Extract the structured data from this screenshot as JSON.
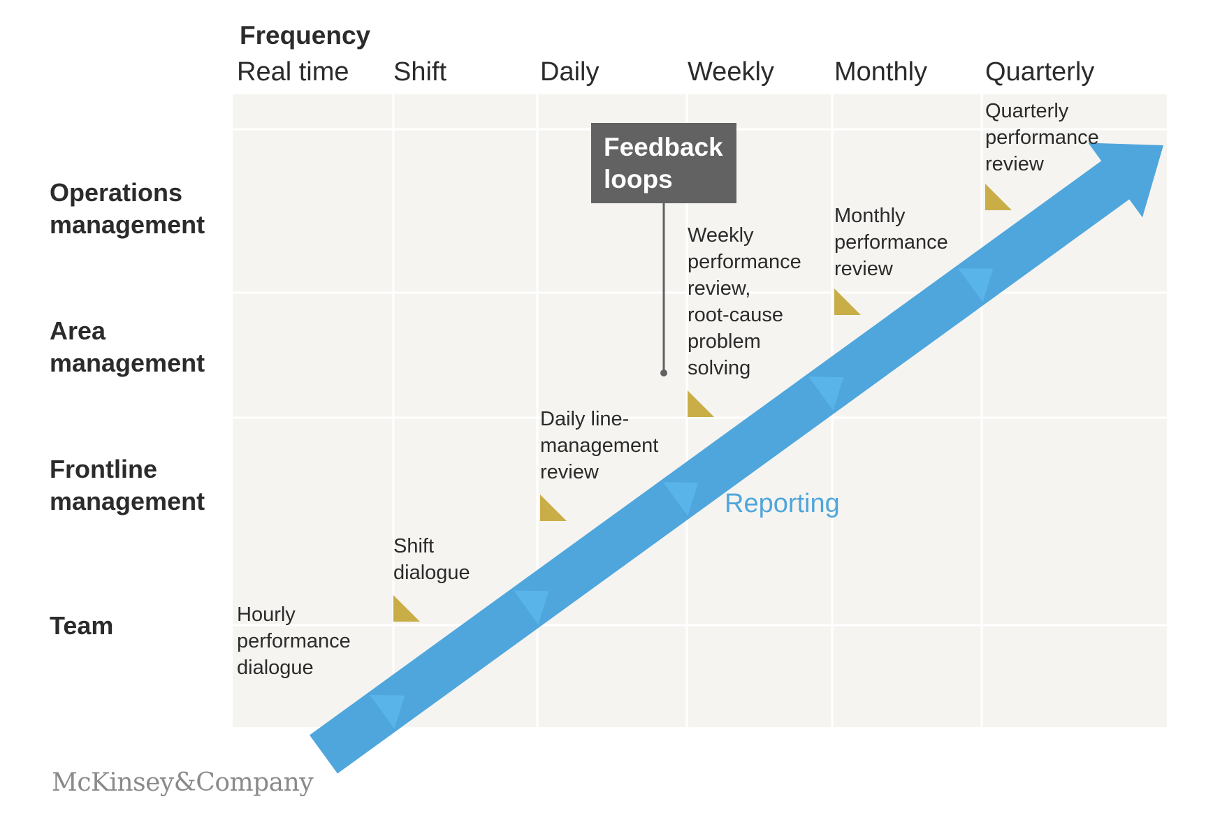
{
  "header": {
    "title": "Frequency",
    "columns": [
      "Real time",
      "Shift",
      "Daily",
      "Weekly",
      "Monthly",
      "Quarterly"
    ]
  },
  "rows": [
    "Operations\nmanagement",
    "Area\nmanagement",
    "Frontline\nmanagement",
    "Team"
  ],
  "meetings": [
    "Hourly\nperformance\ndialogue",
    "Shift\ndialogue",
    "Daily line-\nmanagement\nreview",
    "Weekly\nperformance\nreview,\nroot-cause\nproblem\nsolving",
    "Monthly\nperformance\nreview",
    "Quarterly\nperformance\nreview"
  ],
  "callout": {
    "label": "Feedback\nloops"
  },
  "arrow": {
    "label": "Reporting"
  },
  "brand": "McKinsey&Company",
  "colors": {
    "grid_background": "#f5f4f0",
    "arrow": "#4fa6dc",
    "arrow_chevron": "#5ab6ea",
    "marker": "#c9ae48",
    "callout_background": "#626262"
  }
}
